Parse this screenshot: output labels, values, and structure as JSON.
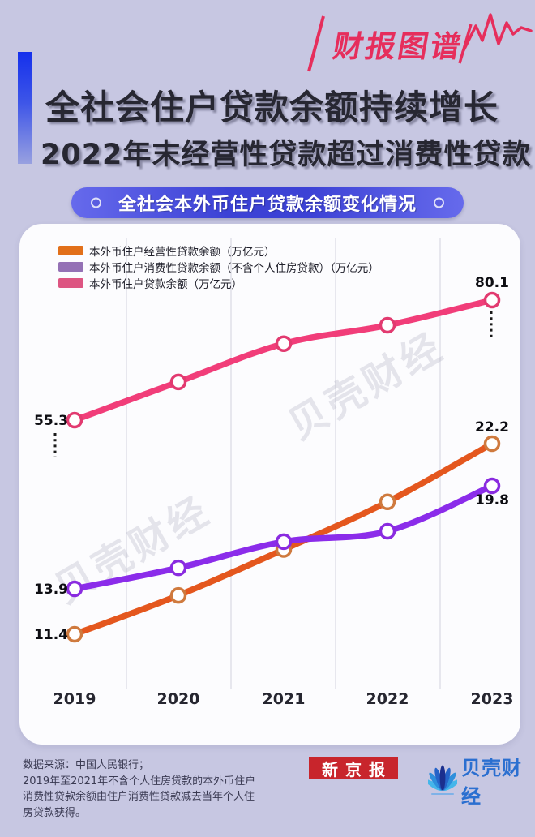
{
  "brand_tag": {
    "label": "财报图谱",
    "color": "#e62e5c"
  },
  "header": {
    "title_line1": "全社会住户贷款余额持续增长",
    "title_line2": "2022年末经营性贷款超过消费性贷款"
  },
  "badge": {
    "label": "全社会本外币住户贷款余额变化情况"
  },
  "watermark": {
    "text": "贝壳财经"
  },
  "chart_data": {
    "type": "line",
    "title": "全社会本外币住户贷款余额变化情况",
    "categories": [
      "2019",
      "2020",
      "2021",
      "2022",
      "2023"
    ],
    "series": [
      {
        "name": "本外币住户经营性贷款余额（万亿元）",
        "line_color": "#e4571e",
        "marker_ring_color": "#cf7a3e",
        "legend_color": "#e2701a",
        "values": [
          11.4,
          13.6,
          16.2,
          18.9,
          22.2
        ],
        "label_first": "11.4",
        "label_last": "22.2"
      },
      {
        "name": "本外币住户消费性贷款余额（不含个人住房贷款）（万亿元）",
        "line_color": "#8b2cea",
        "marker_ring_color": "#8a2be0",
        "legend_color": "#9471b5",
        "values": [
          13.9,
          15.1,
          16.6,
          17.2,
          19.8
        ],
        "label_first": "13.9",
        "label_last": "19.8"
      },
      {
        "name": "本外币住户贷款余额（万亿元）",
        "line_color": "#f13d79",
        "marker_ring_color": "#e23a70",
        "legend_color": "#dd5582",
        "values": [
          55.3,
          63.2,
          71.1,
          74.9,
          80.1
        ],
        "label_first": "55.3",
        "label_last": "80.1"
      }
    ],
    "xlabel": "",
    "ylabel": "万亿元",
    "grid": "vertical-only",
    "legend_position": "top-left"
  },
  "footer": {
    "source_lines": [
      "数据来源：中国人民银行；",
      "2019年至2021年不含个人住房贷款的本外币住户",
      "消费性贷款余额由住户消费性贷款减去当年个人住",
      "房贷款获得。"
    ],
    "logo_xinjingbao": "新京报",
    "logo_beike": "贝壳财经"
  }
}
